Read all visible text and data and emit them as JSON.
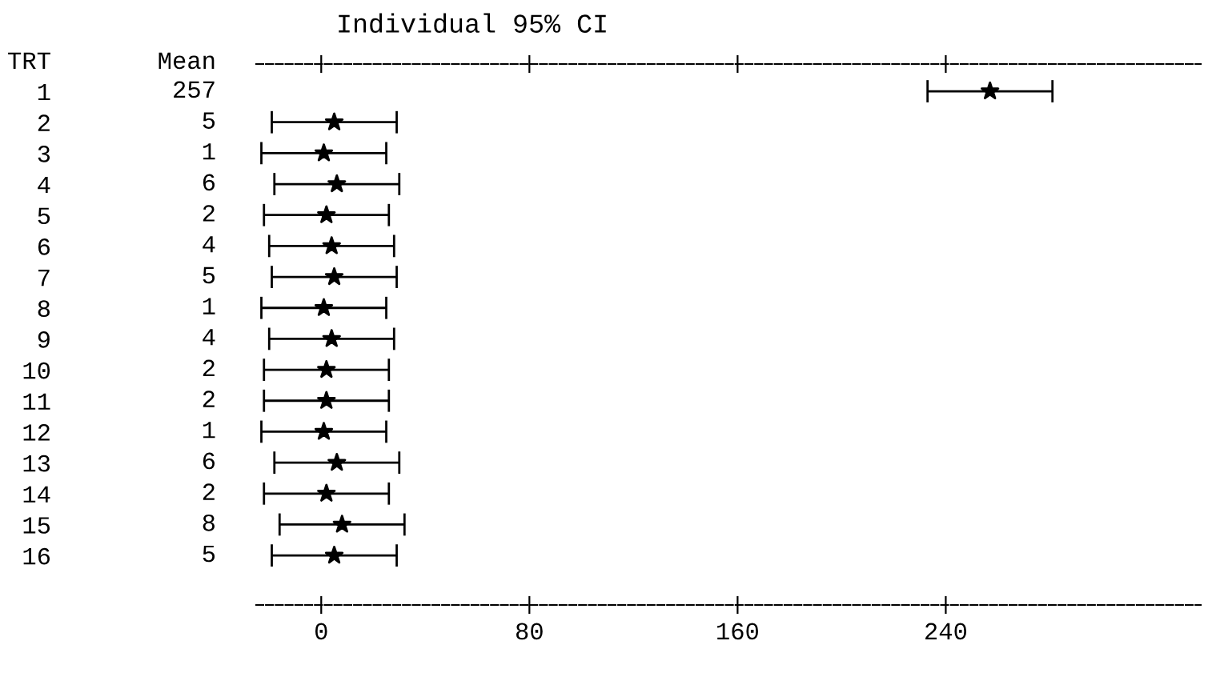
{
  "chart_data": {
    "type": "scatter",
    "orientation": "horizontal",
    "title": "Individual 95% CI",
    "annotations": [
      "TRT",
      "Mean"
    ],
    "categories": [
      "1",
      "2",
      "3",
      "4",
      "5",
      "6",
      "7",
      "8",
      "9",
      "10",
      "11",
      "12",
      "13",
      "14",
      "15",
      "16"
    ],
    "values": [
      257,
      5,
      1,
      6,
      2,
      4,
      5,
      1,
      4,
      2,
      2,
      1,
      6,
      2,
      8,
      5
    ],
    "errors": [
      24,
      24,
      24,
      24,
      24,
      24,
      24,
      24,
      24,
      24,
      24,
      24,
      24,
      24,
      24,
      24
    ],
    "data_labels": true,
    "color": "#000000",
    "marker": "star",
    "xlim": [
      -25,
      338
    ],
    "xticks": [
      0,
      80,
      160,
      240
    ],
    "grid": false,
    "legend": false
  }
}
